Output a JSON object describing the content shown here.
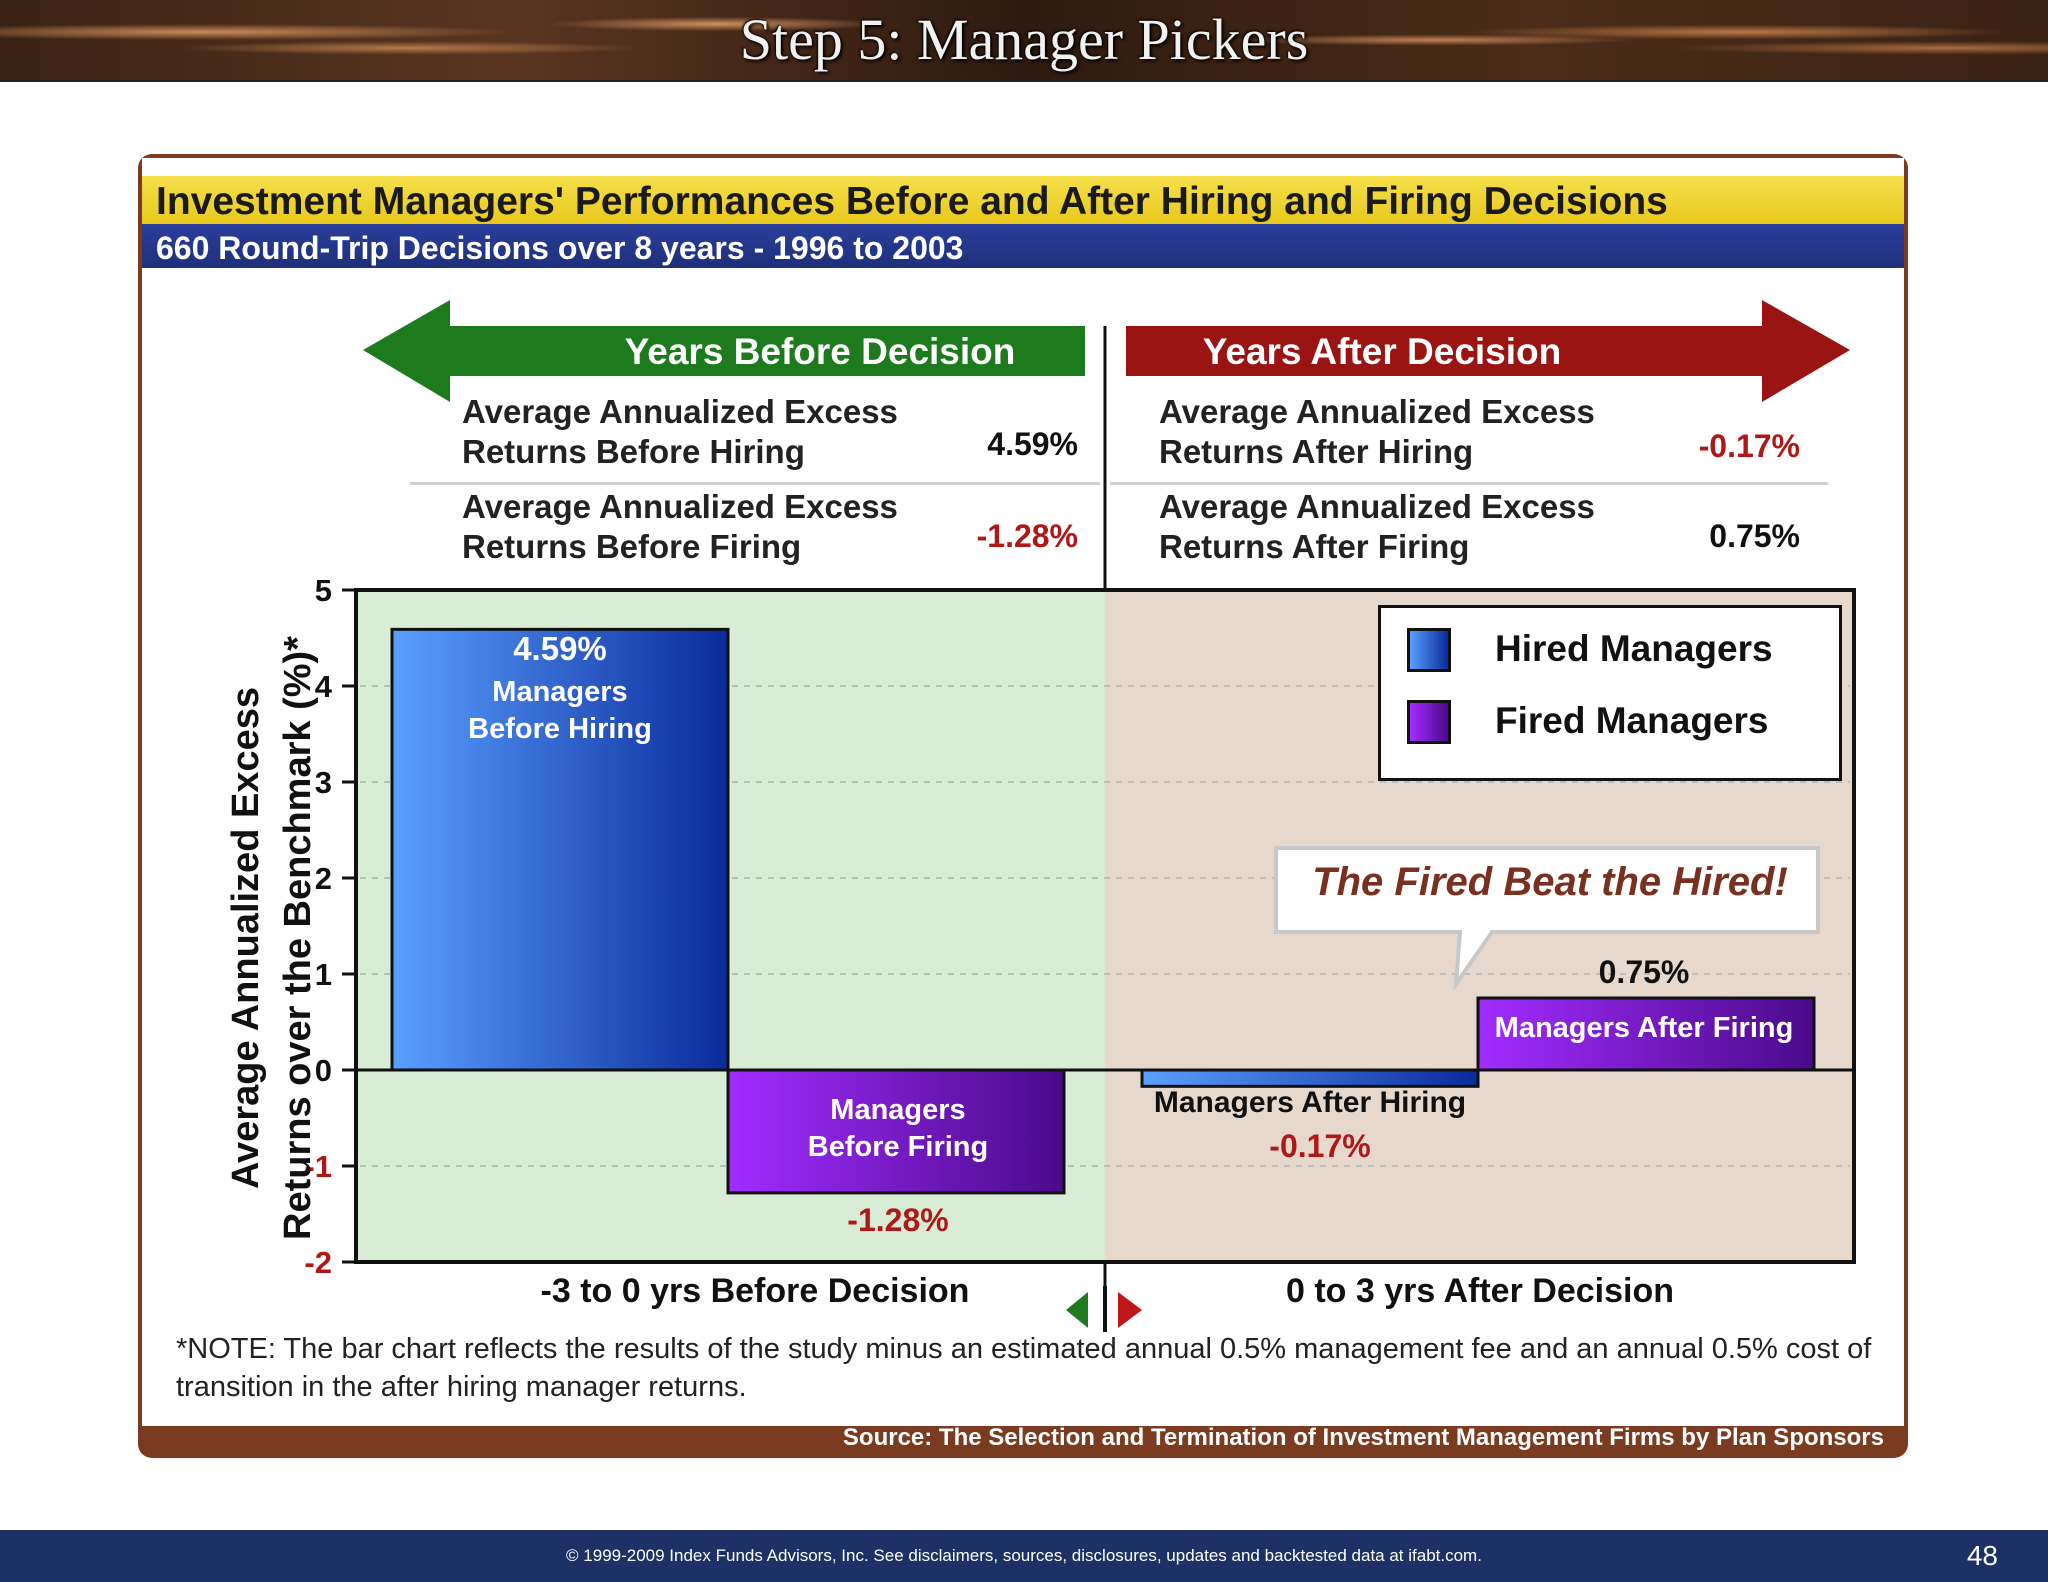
{
  "banner": {
    "title": "Step 5: Manager Pickers"
  },
  "header": {
    "title": "Investment Managers' Performances Before and After Hiring and Firing Decisions",
    "subtitle": "660 Round-Trip Decisions over 8 years - 1996 to 2003"
  },
  "arrows": {
    "before": "Years Before Decision",
    "after": "Years After Decision"
  },
  "stats": {
    "before_hiring": {
      "label1": "Average Annualized Excess",
      "label2": "Returns Before Hiring",
      "value": "4.59%"
    },
    "before_firing": {
      "label1": "Average Annualized Excess",
      "label2": "Returns Before Firing",
      "value": "-1.28%"
    },
    "after_hiring": {
      "label1": "Average Annualized Excess",
      "label2": "Returns After Hiring",
      "value": "-0.17%"
    },
    "after_firing": {
      "label1": "Average Annualized Excess",
      "label2": "Returns After Firing",
      "value": "0.75%"
    }
  },
  "callout": "The Fired Beat the Hired!",
  "note": "*NOTE: The bar chart reflects the results of the study minus an estimated annual 0.5% management fee and an annual 0.5% cost of transition in the after hiring manager returns.",
  "source": "Source: The Selection and Termination of Investment Management Firms by Plan Sponsors",
  "footer": {
    "text": "© 1999-2009 Index Funds Advisors, Inc. See disclaimers, sources, disclosures, updates and backtested data at ifabt.com.",
    "page": "48"
  },
  "colors": {
    "hired": "#1e64d8",
    "fired": "#8a1ad8",
    "before_bg": "#d9ecd5",
    "after_bg": "#e6d8cc",
    "green": "#1d7a1d",
    "red": "#9a1414"
  },
  "chart_data": {
    "type": "bar",
    "categories": [
      "-3 to 0 yrs Before Decision",
      "0 to 3 yrs After Decision"
    ],
    "ylabel_line1": "Average Annualized Excess",
    "ylabel_line2": "Returns over the Benchmark (%)*",
    "ylim": [
      -2,
      5
    ],
    "yticks": [
      5,
      4,
      3,
      2,
      1,
      0,
      -1,
      -2
    ],
    "grid": true,
    "series": [
      {
        "name": "Hired Managers",
        "values": [
          4.59,
          -0.17
        ]
      },
      {
        "name": "Fired Managers",
        "values": [
          -1.28,
          0.75
        ]
      }
    ],
    "bar_labels": {
      "before_hiring": {
        "value": "4.59%",
        "line1": "Managers",
        "line2": "Before Hiring"
      },
      "before_firing": {
        "value": "-1.28%",
        "line1": "Managers",
        "line2": "Before Firing"
      },
      "after_hiring": {
        "value": "-0.17%",
        "text": "Managers After Hiring"
      },
      "after_firing": {
        "value": "0.75%",
        "text": "Managers After Firing"
      }
    }
  }
}
